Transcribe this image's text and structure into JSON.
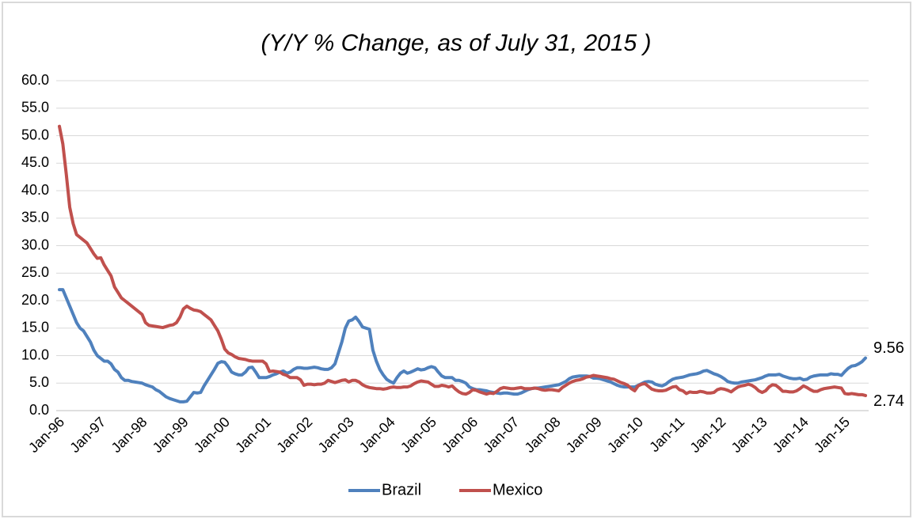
{
  "chart_data": {
    "type": "line",
    "title": "(Y/Y % Change, as of July 31, 2015 )",
    "categories": [
      "Jan-96",
      null,
      null,
      null,
      null,
      null,
      null,
      null,
      null,
      null,
      null,
      null,
      "Jan-97",
      null,
      null,
      null,
      null,
      null,
      null,
      null,
      null,
      null,
      null,
      null,
      "Jan-98",
      null,
      null,
      null,
      null,
      null,
      null,
      null,
      null,
      null,
      null,
      null,
      "Jan-99",
      null,
      null,
      null,
      null,
      null,
      null,
      null,
      null,
      null,
      null,
      null,
      "Jan-00",
      null,
      null,
      null,
      null,
      null,
      null,
      null,
      null,
      null,
      null,
      null,
      "Jan-01",
      null,
      null,
      null,
      null,
      null,
      null,
      null,
      null,
      null,
      null,
      null,
      "Jan-02",
      null,
      null,
      null,
      null,
      null,
      null,
      null,
      null,
      null,
      null,
      null,
      "Jan-03",
      null,
      null,
      null,
      null,
      null,
      null,
      null,
      null,
      null,
      null,
      null,
      "Jan-04",
      null,
      null,
      null,
      null,
      null,
      null,
      null,
      null,
      null,
      null,
      null,
      "Jan-05",
      null,
      null,
      null,
      null,
      null,
      null,
      null,
      null,
      null,
      null,
      null,
      "Jan-06",
      null,
      null,
      null,
      null,
      null,
      null,
      null,
      null,
      null,
      null,
      null,
      "Jan-07",
      null,
      null,
      null,
      null,
      null,
      null,
      null,
      null,
      null,
      null,
      null,
      "Jan-08",
      null,
      null,
      null,
      null,
      null,
      null,
      null,
      null,
      null,
      null,
      null,
      "Jan-09",
      null,
      null,
      null,
      null,
      null,
      null,
      null,
      null,
      null,
      null,
      null,
      "Jan-10",
      null,
      null,
      null,
      null,
      null,
      null,
      null,
      null,
      null,
      null,
      null,
      "Jan-11",
      null,
      null,
      null,
      null,
      null,
      null,
      null,
      null,
      null,
      null,
      null,
      "Jan-12",
      null,
      null,
      null,
      null,
      null,
      null,
      null,
      null,
      null,
      null,
      null,
      "Jan-13",
      null,
      null,
      null,
      null,
      null,
      null,
      null,
      null,
      null,
      null,
      null,
      "Jan-14",
      null,
      null,
      null,
      null,
      null,
      null,
      null,
      null,
      null,
      null,
      null,
      "Jan-15",
      null,
      null,
      null,
      null,
      null,
      null
    ],
    "series": [
      {
        "name": "Brazil",
        "color": "#4f81bd",
        "values": [
          22,
          22,
          20.5,
          19,
          17.5,
          16,
          15,
          14.5,
          13.5,
          12.5,
          11,
          10,
          9.5,
          9,
          9,
          8.5,
          7.5,
          7,
          6,
          5.5,
          5.5,
          5.3,
          5.2,
          5.1,
          5,
          4.7,
          4.5,
          4.3,
          3.8,
          3.5,
          3,
          2.5,
          2.2,
          2,
          1.8,
          1.6,
          1.6,
          1.7,
          2.5,
          3.3,
          3.2,
          3.3,
          4.5,
          5.5,
          6.5,
          7.5,
          8.6,
          8.9,
          8.8,
          8,
          7,
          6.7,
          6.5,
          6.5,
          7,
          7.8,
          7.9,
          7,
          6,
          6,
          6,
          6.2,
          6.5,
          6.7,
          7,
          7.2,
          6.8,
          7,
          7.5,
          7.8,
          7.8,
          7.7,
          7.7,
          7.8,
          7.9,
          7.8,
          7.6,
          7.5,
          7.5,
          7.8,
          8.5,
          10.5,
          12.5,
          15,
          16.3,
          16.5,
          17,
          16.2,
          15.2,
          15,
          14.8,
          11,
          9,
          7.5,
          6.5,
          5.7,
          5.3,
          5,
          6,
          6.8,
          7.2,
          6.8,
          7,
          7.3,
          7.6,
          7.4,
          7.5,
          7.8,
          8,
          7.8,
          7,
          6.3,
          6,
          6,
          6,
          5.5,
          5.5,
          5.3,
          5,
          4.3,
          4,
          3.8,
          3.8,
          3.7,
          3.6,
          3.4,
          3.3,
          3.2,
          3.1,
          3.2,
          3.2,
          3.1,
          3,
          3,
          3.2,
          3.5,
          3.8,
          4,
          4.1,
          4.1,
          4.2,
          4.3,
          4.4,
          4.5,
          4.6,
          4.7,
          5,
          5.3,
          5.8,
          6.1,
          6.2,
          6.3,
          6.3,
          6.3,
          6.2,
          5.9,
          5.9,
          5.8,
          5.6,
          5.4,
          5.2,
          4.9,
          4.6,
          4.4,
          4.3,
          4.3,
          4.3,
          4.3,
          4.6,
          4.9,
          5.2,
          5.3,
          5.2,
          4.8,
          4.6,
          4.5,
          4.8,
          5.3,
          5.7,
          5.9,
          6,
          6.1,
          6.3,
          6.5,
          6.6,
          6.7,
          6.9,
          7.2,
          7.3,
          7,
          6.7,
          6.5,
          6.2,
          5.8,
          5.3,
          5.1,
          5,
          5,
          5.2,
          5.3,
          5.4,
          5.5,
          5.6,
          5.8,
          6,
          6.3,
          6.5,
          6.5,
          6.5,
          6.6,
          6.3,
          6.1,
          5.9,
          5.8,
          5.8,
          5.9,
          5.6,
          5.7,
          6.1,
          6.3,
          6.4,
          6.5,
          6.5,
          6.5,
          6.7,
          6.6,
          6.6,
          6.4,
          7.1,
          7.7,
          8.1,
          8.2,
          8.5,
          8.9,
          9.56
        ]
      },
      {
        "name": "Mexico",
        "color": "#c0504d",
        "values": [
          51.7,
          48.5,
          43,
          37,
          34,
          32,
          31.5,
          31,
          30.5,
          29.5,
          28.5,
          27.7,
          27.8,
          26.5,
          25.5,
          24.5,
          22.5,
          21.5,
          20.5,
          20,
          19.5,
          19,
          18.5,
          18,
          17.5,
          16,
          15.5,
          15.4,
          15.3,
          15.2,
          15.1,
          15.3,
          15.5,
          15.6,
          16,
          17,
          18.5,
          19,
          18.6,
          18.3,
          18.2,
          18,
          17.5,
          17,
          16.5,
          15.5,
          14.5,
          13,
          11.2,
          10.5,
          10.2,
          9.8,
          9.5,
          9.4,
          9.3,
          9.1,
          9,
          9,
          9,
          9,
          8.5,
          7.1,
          7.2,
          7.1,
          7,
          6.6,
          6.4,
          6,
          6,
          6,
          5.6,
          4.6,
          4.8,
          4.8,
          4.7,
          4.8,
          4.8,
          5,
          5.5,
          5.3,
          5.1,
          5.3,
          5.5,
          5.6,
          5.2,
          5.5,
          5.5,
          5.2,
          4.7,
          4.4,
          4.2,
          4.1,
          4,
          4,
          3.9,
          4,
          4.2,
          4.3,
          4.2,
          4.2,
          4.3,
          4.3,
          4.5,
          4.9,
          5.2,
          5.4,
          5.3,
          5.2,
          4.8,
          4.4,
          4.4,
          4.6,
          4.5,
          4.3,
          4.5,
          3.9,
          3.4,
          3.1,
          3,
          3.3,
          3.8,
          3.7,
          3.4,
          3.2,
          3,
          3.2,
          3.1,
          3.5,
          4,
          4.2,
          4.1,
          4,
          4,
          4.1,
          4.2,
          4,
          4,
          4,
          4.1,
          4,
          3.8,
          3.7,
          3.8,
          3.8,
          3.7,
          3.6,
          4.2,
          4.6,
          5,
          5.3,
          5.5,
          5.6,
          5.8,
          6.1,
          6.2,
          6.4,
          6.3,
          6.2,
          6.1,
          6,
          5.8,
          5.7,
          5.4,
          5.1,
          4.9,
          4.6,
          4,
          3.6,
          4.5,
          4.8,
          4.9,
          4.4,
          3.9,
          3.7,
          3.6,
          3.6,
          3.7,
          4,
          4.3,
          4.4,
          3.8,
          3.6,
          3.1,
          3.4,
          3.3,
          3.3,
          3.5,
          3.4,
          3.2,
          3.2,
          3.3,
          3.8,
          4,
          3.9,
          3.7,
          3.4,
          3.9,
          4.3,
          4.5,
          4.6,
          4.8,
          4.6,
          4.2,
          3.6,
          3.3,
          3.6,
          4.3,
          4.7,
          4.6,
          4.1,
          3.5,
          3.5,
          3.4,
          3.4,
          3.6,
          4,
          4.5,
          4.2,
          3.8,
          3.5,
          3.5,
          3.8,
          4,
          4.1,
          4.2,
          4.3,
          4.2,
          4.1,
          3.1,
          3,
          3.1,
          3,
          2.9,
          2.9,
          2.74
        ]
      }
    ],
    "ylim": [
      0,
      60
    ],
    "yticks": [
      {
        "value": 0,
        "label": "0.0"
      },
      {
        "value": 5,
        "label": "5.0"
      },
      {
        "value": 10,
        "label": "10.0"
      },
      {
        "value": 15,
        "label": "15.0"
      },
      {
        "value": 20,
        "label": "20.0"
      },
      {
        "value": 25,
        "label": "25.0"
      },
      {
        "value": 30,
        "label": "30.0"
      },
      {
        "value": 35,
        "label": "35.0"
      },
      {
        "value": 40,
        "label": "40.0"
      },
      {
        "value": 45,
        "label": "45.0"
      },
      {
        "value": 50,
        "label": "50.0"
      },
      {
        "value": 55,
        "label": "55.0"
      },
      {
        "value": 60,
        "label": "60.0"
      }
    ],
    "grid": true,
    "legend": "bottom",
    "end_labels": true
  }
}
